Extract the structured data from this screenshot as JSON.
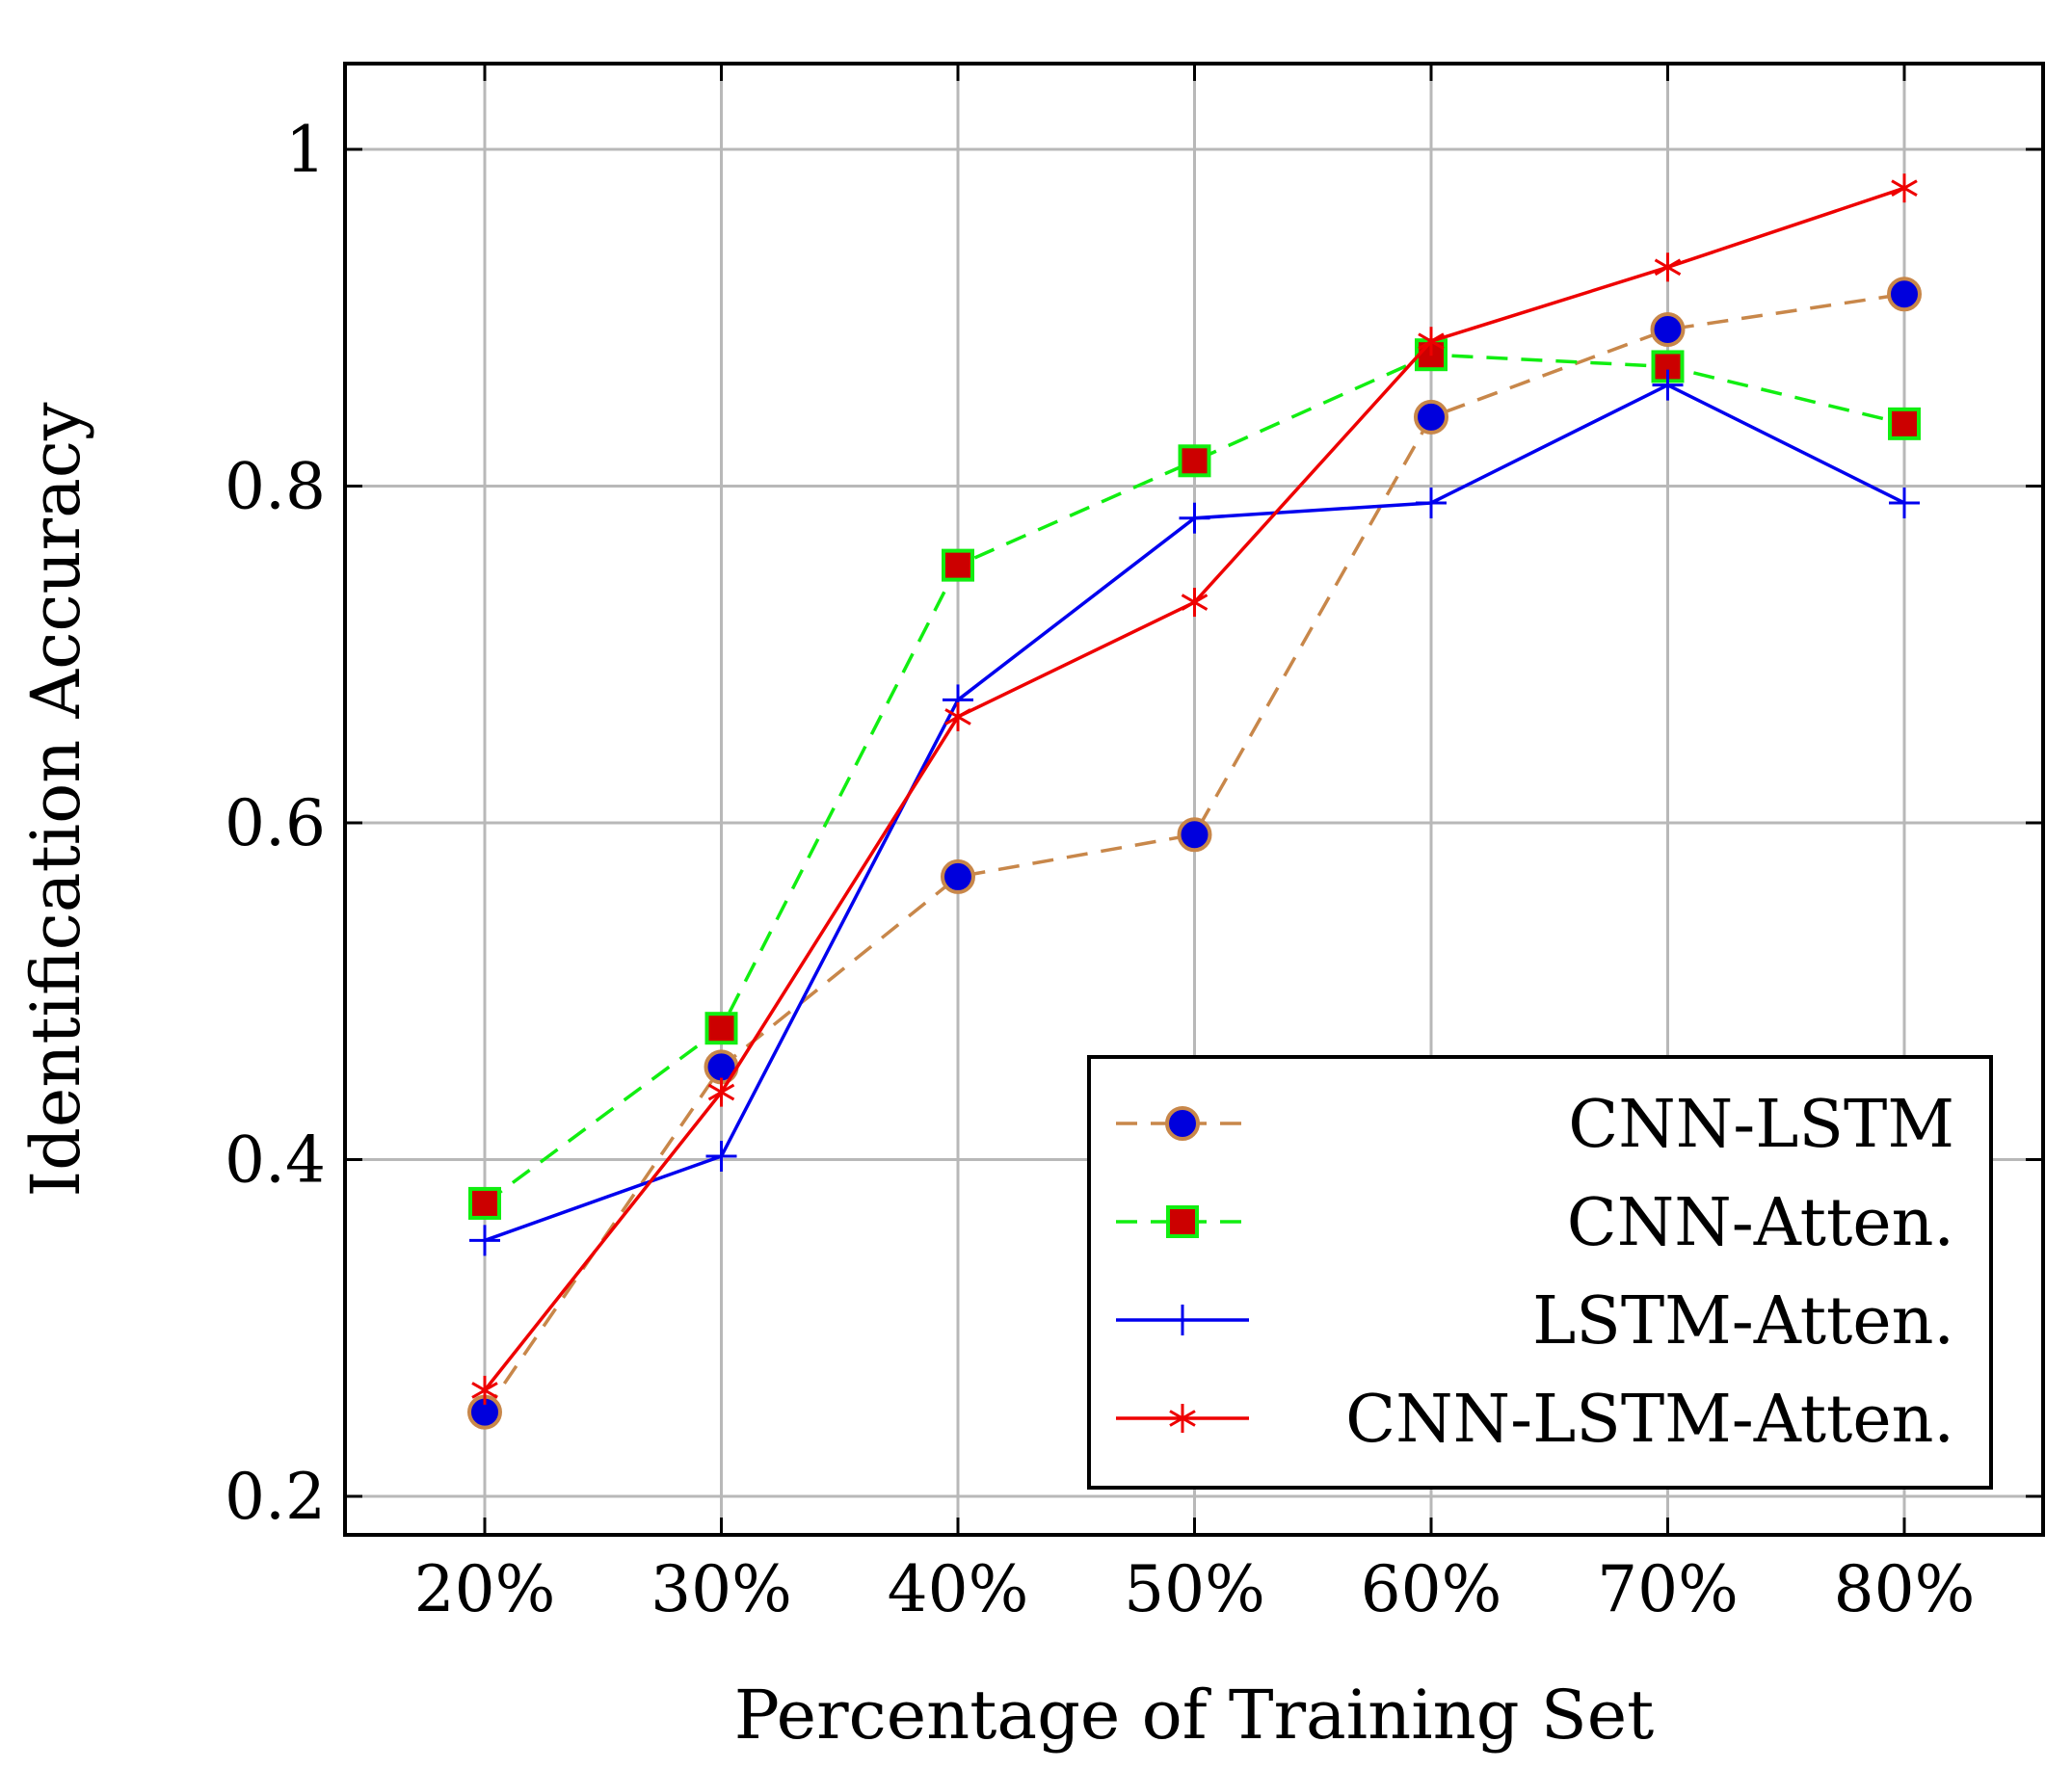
{
  "chart_data": {
    "type": "line",
    "title": "",
    "xlabel": "Percentage of Training Set",
    "ylabel": "Identification Accuracy",
    "categories": [
      "20%",
      "30%",
      "40%",
      "50%",
      "60%",
      "70%",
      "80%"
    ],
    "ylim": [
      0.18,
      1.05
    ],
    "yticks": [
      0.2,
      0.4,
      0.6,
      0.8,
      1.0
    ],
    "ytick_labels": [
      "0.2",
      "0.4",
      "0.6",
      "0.8",
      "1"
    ],
    "grid": true,
    "legend_position": "bottom-right",
    "series": [
      {
        "name": "CNN-LSTM",
        "line_color": "#c8874a",
        "marker_color": "#0000dd",
        "dash": "dashed",
        "marker": "circle",
        "values": [
          0.25,
          0.455,
          0.568,
          0.593,
          0.841,
          0.893,
          0.914
        ]
      },
      {
        "name": "CNN-Atten.",
        "line_color": "#11ee11",
        "marker_color": "#cc0000",
        "dash": "dashed",
        "marker": "square",
        "values": [
          0.374,
          0.478,
          0.753,
          0.815,
          0.878,
          0.871,
          0.837
        ]
      },
      {
        "name": "LSTM-Atten.",
        "line_color": "#0000ee",
        "marker_color": "#0000ee",
        "dash": "solid",
        "marker": "plus",
        "values": [
          0.352,
          0.402,
          0.673,
          0.781,
          0.79,
          0.86,
          0.79
        ]
      },
      {
        "name": "CNN-LSTM-Atten.",
        "line_color": "#ee0000",
        "marker_color": "#ee0000",
        "dash": "solid",
        "marker": "star",
        "values": [
          0.263,
          0.44,
          0.663,
          0.731,
          0.886,
          0.93,
          0.977
        ]
      }
    ]
  }
}
